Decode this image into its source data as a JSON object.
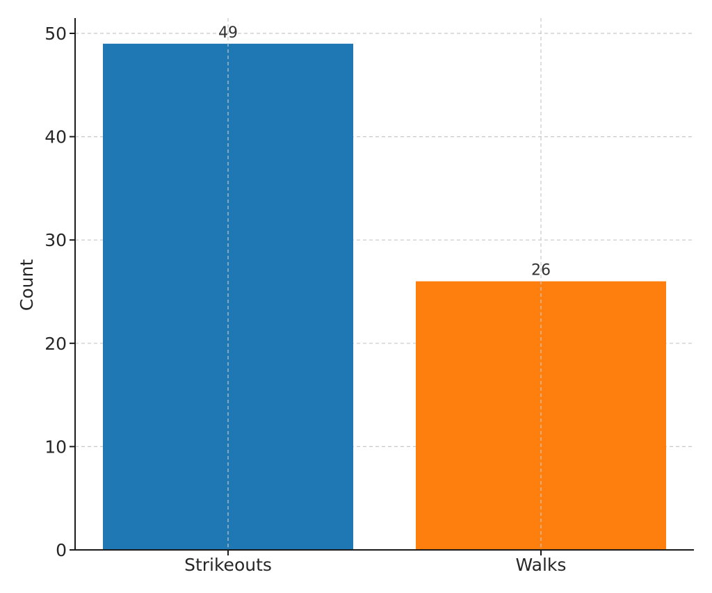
{
  "chart_data": {
    "type": "bar",
    "categories": [
      "Strikeouts",
      "Walks"
    ],
    "values": [
      49,
      26
    ],
    "colors": [
      "#1f77b4",
      "#ff7f0e"
    ],
    "data_labels": [
      "49",
      "26"
    ],
    "title": "",
    "xlabel": "",
    "ylabel": "Count",
    "ylim": [
      0,
      51.5
    ],
    "yticks": [
      0,
      10,
      20,
      30,
      40,
      50
    ],
    "ytick_labels": [
      "0",
      "10",
      "20",
      "30",
      "40",
      "50"
    ],
    "grid": true
  }
}
